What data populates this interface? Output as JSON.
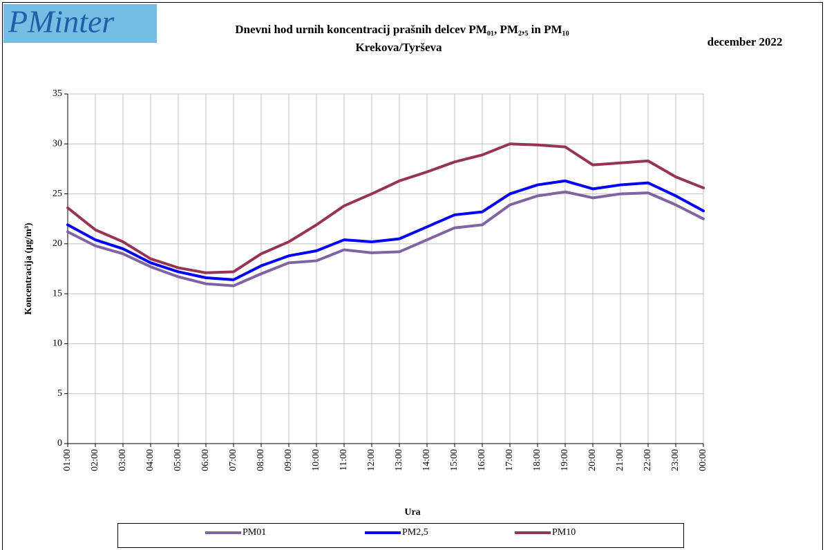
{
  "logo": "PMinter",
  "date": "december 2022",
  "chart_data": {
    "type": "line",
    "title": "Dnevni hod urnih koncentracij prašnih delcev PM₀₁, PM₂,₅ in PM₁₀",
    "subtitle": "Krekova/Tyrševa",
    "x_label": "Ura",
    "y_label": "Koncentracija  (µg/m³)",
    "categories": [
      "01:00",
      "02:00",
      "03:00",
      "04:00",
      "05:00",
      "06:00",
      "07:00",
      "08:00",
      "09:00",
      "10:00",
      "11:00",
      "12:00",
      "13:00",
      "14:00",
      "15:00",
      "16:00",
      "17:00",
      "18:00",
      "19:00",
      "20:00",
      "21:00",
      "22:00",
      "23:00",
      "00:00"
    ],
    "series": [
      {
        "name": "PM01",
        "color": "#8064a2",
        "values": [
          21.2,
          19.8,
          19.0,
          17.7,
          16.7,
          16.0,
          15.8,
          17.0,
          18.1,
          18.3,
          19.4,
          19.1,
          19.2,
          20.4,
          21.6,
          21.9,
          23.9,
          24.8,
          25.2,
          24.6,
          25.0,
          25.1,
          23.9,
          22.5
        ]
      },
      {
        "name": "PM2,5",
        "color": "#0000ff",
        "values": [
          21.9,
          20.4,
          19.5,
          18.1,
          17.2,
          16.6,
          16.4,
          17.8,
          18.8,
          19.3,
          20.4,
          20.2,
          20.5,
          21.7,
          22.9,
          23.2,
          25.0,
          25.9,
          26.3,
          25.5,
          25.9,
          26.1,
          24.8,
          23.3
        ]
      },
      {
        "name": "PM10",
        "color": "#953553",
        "values": [
          23.6,
          21.4,
          20.2,
          18.5,
          17.6,
          17.1,
          17.2,
          19.0,
          20.2,
          21.9,
          23.8,
          25.0,
          26.3,
          27.2,
          28.2,
          28.9,
          30.0,
          29.9,
          29.7,
          27.9,
          28.1,
          28.3,
          26.7,
          25.6
        ]
      }
    ],
    "ylim": [
      0,
      35
    ],
    "yticks": [
      0,
      5,
      10,
      15,
      20,
      25,
      30,
      35
    ],
    "grid": true,
    "legend": "bottom"
  }
}
